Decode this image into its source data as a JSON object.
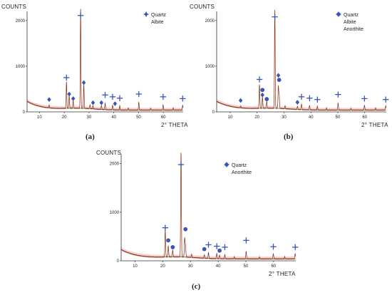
{
  "colors": {
    "trace": "#8b2a10",
    "baseline": "#2e7d32",
    "envelope": "#f2b8b8",
    "marker": "#3a55b4",
    "axis": "#333333"
  },
  "chart_data": [
    {
      "type": "line",
      "ylabel": "COUNTS",
      "xlabel": "2° THETA",
      "caption": "(a)",
      "xlim": [
        5,
        68
      ],
      "ylim": [
        0,
        2200
      ],
      "x_ticks": [
        10,
        20,
        30,
        40,
        50,
        60
      ],
      "y_ticks": [
        0,
        1000,
        2000
      ],
      "legend": [
        {
          "label": "Quartz",
          "symbol": "cross"
        },
        {
          "label": "Albite",
          "symbol": "diamond"
        }
      ],
      "peaks": [
        [
          13.9,
          60
        ],
        [
          20.9,
          580
        ],
        [
          22.0,
          300
        ],
        [
          23.6,
          170
        ],
        [
          26.6,
          2180
        ],
        [
          27.9,
          520
        ],
        [
          30.4,
          80
        ],
        [
          31.6,
          70
        ],
        [
          35.0,
          90
        ],
        [
          36.5,
          140
        ],
        [
          39.5,
          110
        ],
        [
          42.4,
          90
        ],
        [
          45.8,
          40
        ],
        [
          50.1,
          170
        ],
        [
          54.9,
          40
        ],
        [
          59.9,
          110
        ],
        [
          64.0,
          40
        ],
        [
          67.8,
          110
        ]
      ],
      "markers": [
        {
          "x": 20.9,
          "y": 750,
          "symbol": "cross"
        },
        {
          "x": 26.6,
          "y": 2110,
          "symbol": "cross"
        },
        {
          "x": 36.5,
          "y": 370,
          "symbol": "cross"
        },
        {
          "x": 39.5,
          "y": 330,
          "symbol": "cross"
        },
        {
          "x": 42.4,
          "y": 300,
          "symbol": "cross"
        },
        {
          "x": 50.1,
          "y": 390,
          "symbol": "cross"
        },
        {
          "x": 59.9,
          "y": 330,
          "symbol": "cross"
        },
        {
          "x": 67.8,
          "y": 290,
          "symbol": "cross"
        },
        {
          "x": 13.9,
          "y": 270,
          "symbol": "diamond"
        },
        {
          "x": 22.0,
          "y": 390,
          "symbol": "diamond"
        },
        {
          "x": 23.6,
          "y": 290,
          "symbol": "diamond"
        },
        {
          "x": 27.9,
          "y": 640,
          "symbol": "diamond"
        },
        {
          "x": 31.6,
          "y": 200,
          "symbol": "diamond"
        },
        {
          "x": 35.0,
          "y": 200,
          "symbol": "diamond"
        },
        {
          "x": 40.5,
          "y": 180,
          "symbol": "diamond"
        }
      ]
    },
    {
      "type": "line",
      "ylabel": "COUNTS",
      "xlabel": "2° THETA",
      "caption": "(b)",
      "xlim": [
        5,
        68
      ],
      "ylim": [
        0,
        2200
      ],
      "x_ticks": [
        10,
        20,
        30,
        40,
        50,
        60
      ],
      "y_ticks": [
        0,
        1000,
        2000
      ],
      "legend": [
        {
          "label": "Quartz",
          "symbol": "cross"
        },
        {
          "label": "Albite",
          "symbol": "diamond"
        },
        {
          "label": "Anorthite",
          "symbol": "circle"
        }
      ],
      "peaks": [
        [
          13.9,
          40
        ],
        [
          20.9,
          520
        ],
        [
          22.0,
          250
        ],
        [
          23.6,
          150
        ],
        [
          26.6,
          2160
        ],
        [
          27.9,
          470
        ],
        [
          28.2,
          300
        ],
        [
          30.4,
          60
        ],
        [
          35.0,
          70
        ],
        [
          36.5,
          120
        ],
        [
          39.5,
          100
        ],
        [
          42.4,
          80
        ],
        [
          45.8,
          40
        ],
        [
          50.1,
          150
        ],
        [
          54.9,
          40
        ],
        [
          59.9,
          100
        ],
        [
          64.0,
          40
        ],
        [
          67.8,
          100
        ]
      ],
      "markers": [
        {
          "x": 20.9,
          "y": 710,
          "symbol": "cross"
        },
        {
          "x": 26.6,
          "y": 2080,
          "symbol": "cross"
        },
        {
          "x": 36.5,
          "y": 330,
          "symbol": "cross"
        },
        {
          "x": 39.5,
          "y": 300,
          "symbol": "cross"
        },
        {
          "x": 42.4,
          "y": 270,
          "symbol": "cross"
        },
        {
          "x": 50.1,
          "y": 380,
          "symbol": "cross"
        },
        {
          "x": 59.9,
          "y": 290,
          "symbol": "cross"
        },
        {
          "x": 67.8,
          "y": 270,
          "symbol": "cross"
        },
        {
          "x": 13.9,
          "y": 250,
          "symbol": "diamond"
        },
        {
          "x": 22.0,
          "y": 370,
          "symbol": "diamond"
        },
        {
          "x": 27.9,
          "y": 800,
          "symbol": "diamond"
        },
        {
          "x": 35.0,
          "y": 210,
          "symbol": "diamond"
        },
        {
          "x": 22.0,
          "y": 480,
          "symbol": "circle"
        },
        {
          "x": 23.6,
          "y": 280,
          "symbol": "circle"
        },
        {
          "x": 28.2,
          "y": 700,
          "symbol": "circle"
        }
      ]
    },
    {
      "type": "line",
      "ylabel": "COUNTS",
      "xlabel": "2° THETA",
      "caption": "(c)",
      "xlim": [
        5,
        68
      ],
      "ylim": [
        0,
        2200
      ],
      "x_ticks": [
        10,
        20,
        30,
        40,
        50,
        60
      ],
      "y_ticks": [
        0,
        1000,
        2000
      ],
      "legend": [
        {
          "label": "Quartz",
          "symbol": "cross"
        },
        {
          "label": "Anorthite",
          "symbol": "circle"
        }
      ],
      "peaks": [
        [
          20.9,
          550
        ],
        [
          22.0,
          230
        ],
        [
          23.6,
          140
        ],
        [
          26.6,
          2150
        ],
        [
          27.9,
          380
        ],
        [
          28.2,
          250
        ],
        [
          30.4,
          60
        ],
        [
          35.0,
          70
        ],
        [
          36.5,
          120
        ],
        [
          39.5,
          110
        ],
        [
          40.5,
          70
        ],
        [
          42.4,
          80
        ],
        [
          45.8,
          40
        ],
        [
          50.1,
          150
        ],
        [
          54.9,
          40
        ],
        [
          59.9,
          100
        ],
        [
          64.0,
          40
        ],
        [
          67.8,
          110
        ]
      ],
      "markers": [
        {
          "x": 20.9,
          "y": 680,
          "symbol": "cross"
        },
        {
          "x": 26.6,
          "y": 1980,
          "symbol": "cross"
        },
        {
          "x": 36.5,
          "y": 330,
          "symbol": "cross"
        },
        {
          "x": 39.5,
          "y": 300,
          "symbol": "cross"
        },
        {
          "x": 42.4,
          "y": 280,
          "symbol": "cross"
        },
        {
          "x": 50.1,
          "y": 420,
          "symbol": "cross"
        },
        {
          "x": 59.9,
          "y": 290,
          "symbol": "cross"
        },
        {
          "x": 67.8,
          "y": 280,
          "symbol": "cross"
        },
        {
          "x": 22.0,
          "y": 420,
          "symbol": "circle"
        },
        {
          "x": 23.6,
          "y": 280,
          "symbol": "circle"
        },
        {
          "x": 28.2,
          "y": 650,
          "symbol": "circle"
        },
        {
          "x": 35.0,
          "y": 240,
          "symbol": "circle"
        },
        {
          "x": 40.5,
          "y": 210,
          "symbol": "circle"
        }
      ]
    }
  ]
}
